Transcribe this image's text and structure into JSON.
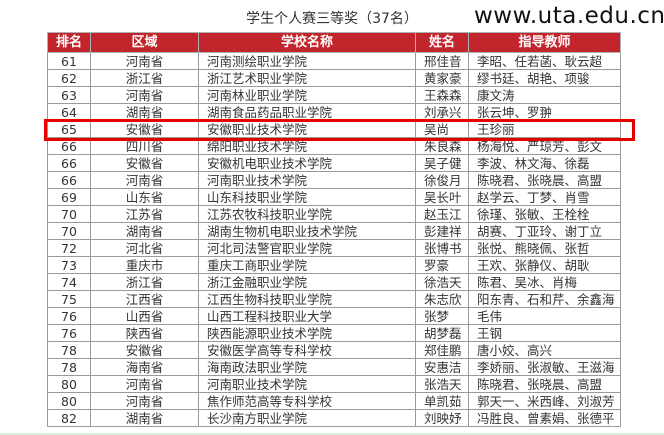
{
  "title": "学生个人赛三等奖（37名）",
  "headers": [
    "排名",
    "区域",
    "学校名称",
    "姓名",
    "指导教师"
  ],
  "rows": [
    [
      "61",
      "河南省",
      "河南测绘职业学院",
      "邢佳音",
      "李昭、任若菡、耿云超"
    ],
    [
      "62",
      "浙江省",
      "浙江艺术职业学院",
      "黄家豪",
      "缪书廷、胡艳、项骏"
    ],
    [
      "63",
      "河南省",
      "河南林业职业学院",
      "王森森",
      "康文涛"
    ],
    [
      "64",
      "湖南省",
      "湖南食品药品职业学院",
      "刘承兴",
      "张云坤、罗翀"
    ],
    [
      "65",
      "安徽省",
      "安徽职业技术学院",
      "吴尚",
      "王珍丽"
    ],
    [
      "66",
      "四川省",
      "绵阳职业技术学院",
      "朱良森",
      "杨海悦、严琼芳、彭文"
    ],
    [
      "66",
      "安徽省",
      "安徽机电职业技术学院",
      "吴子健",
      "李波、林文海、徐磊"
    ],
    [
      "66",
      "河南省",
      "河南职业技术学院",
      "徐俊月",
      "陈晓君、张晓晨、高盟"
    ],
    [
      "69",
      "山东省",
      "山东科技职业学院",
      "吴长叶",
      "赵学云、丁梦、肖雪"
    ],
    [
      "70",
      "江苏省",
      "江苏农牧科技职业学院",
      "赵玉江",
      "徐瑾、张敏、王栓栓"
    ],
    [
      "70",
      "湖南省",
      "湖南生物机电职业技术学院",
      "彭建祥",
      "胡赛、丁亚玲、谢丁立"
    ],
    [
      "72",
      "河北省",
      "河北司法警官职业学院",
      "张博书",
      "张悦、熊晓佩、张哲"
    ],
    [
      "73",
      "重庆市",
      "重庆工商职业学院",
      "罗豪",
      "王欢、张静仪、胡耿"
    ],
    [
      "74",
      "浙江省",
      "浙江金融职业学院",
      "徐浩天",
      "陈君、吴冰、肖梅"
    ],
    [
      "75",
      "江西省",
      "江西生物科技职业学院",
      "朱志欣",
      "阳东青、石和芹、余鑫海"
    ],
    [
      "76",
      "山西省",
      "山西工程科技职业大学",
      "张梦",
      "毛伟"
    ],
    [
      "76",
      "陕西省",
      "陕西能源职业技术学院",
      "胡梦磊",
      "王钢"
    ],
    [
      "78",
      "安徽省",
      "安徽医学高等专科学校",
      "郑佳鹏",
      "唐小姣、高兴"
    ],
    [
      "78",
      "海南省",
      "海南政法职业学院",
      "安惠洁",
      "李娇丽、张淑敏、王滋海"
    ],
    [
      "80",
      "河南省",
      "河南职业技术学院",
      "张浩天",
      "陈晓君、张晓晨、高盟"
    ],
    [
      "80",
      "河南省",
      "焦作师范高等专科学校",
      "单凯茹",
      "郭天一、米西峰、刘淑芳"
    ],
    [
      "82",
      "湖南省",
      "长沙南方职业学院",
      "刘映妤",
      "冯胜良、曾素娟、张德平"
    ]
  ],
  "highlighted_rank": "65",
  "watermark": "www.uta.edu.cn",
  "colors": {
    "header": "#c3252c",
    "highlight": "#e50000"
  }
}
